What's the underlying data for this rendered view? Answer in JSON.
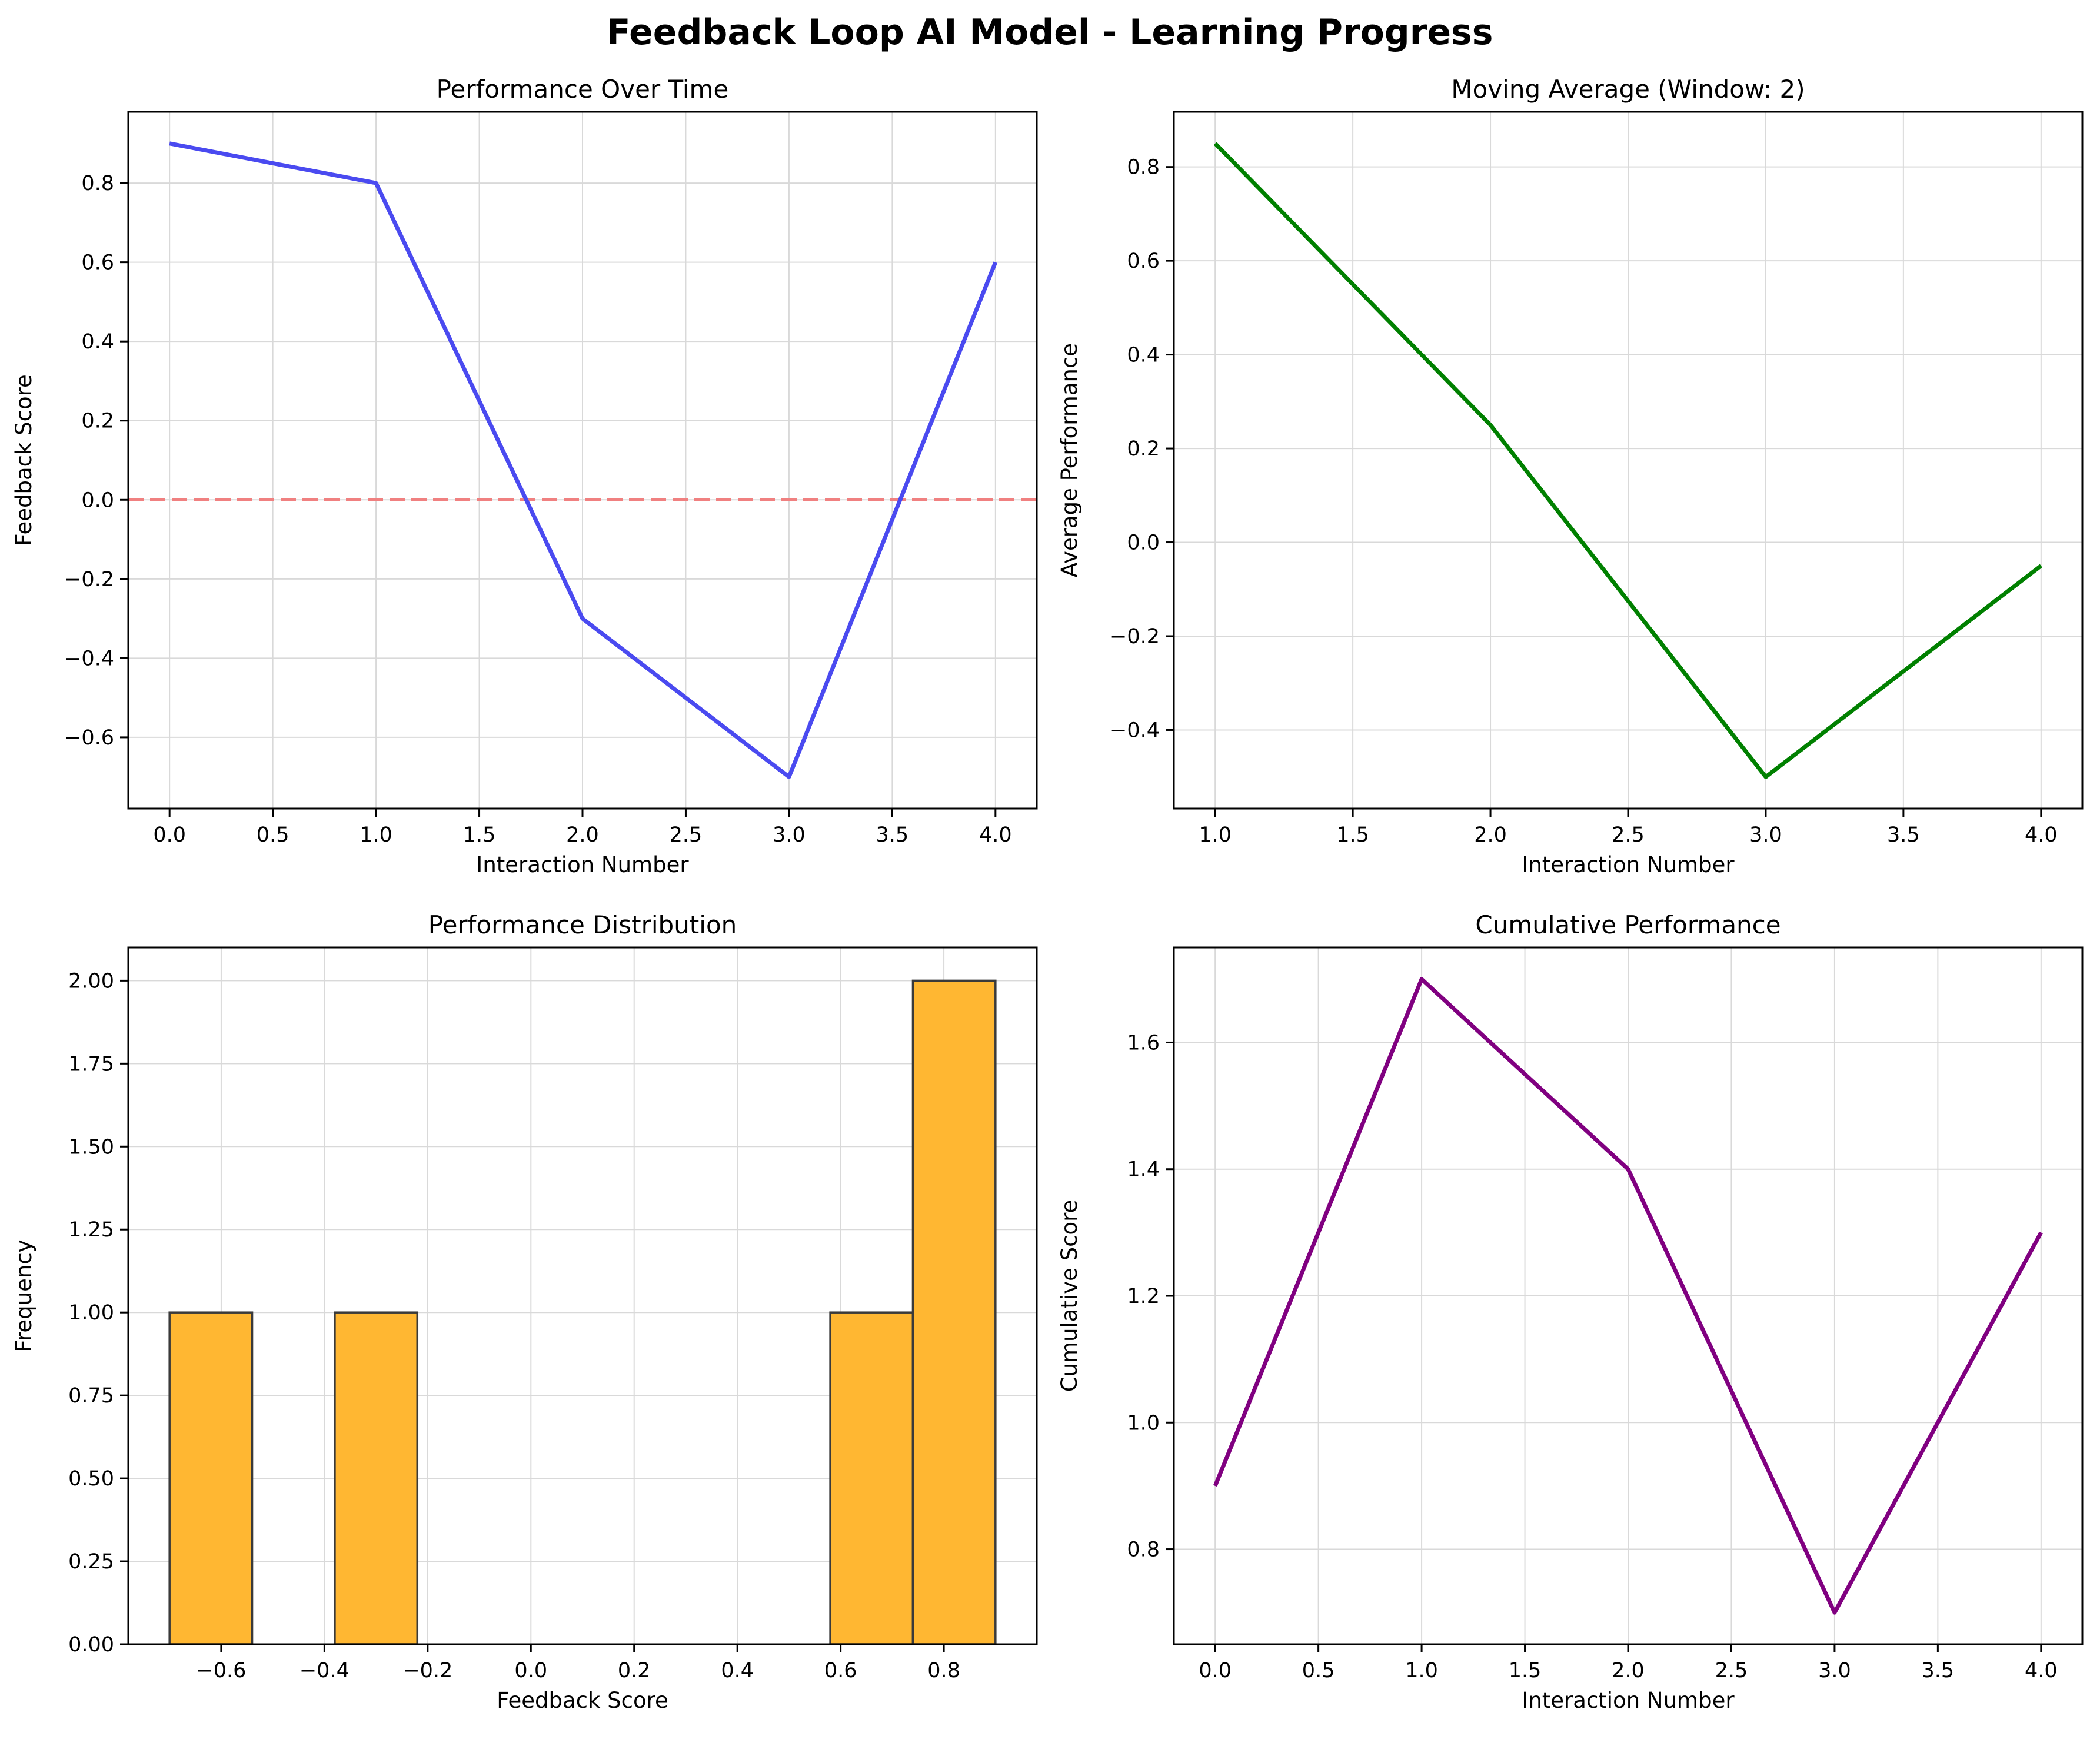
{
  "figure": {
    "title": "Feedback Loop AI Model - Learning Progress"
  },
  "chart_data": [
    {
      "type": "line",
      "title": "Performance Over Time",
      "xlabel": "Interaction Number",
      "ylabel": "Feedback Score",
      "x": [
        0,
        1,
        2,
        3,
        4
      ],
      "series": [
        {
          "values": [
            0.9,
            0.8,
            -0.3,
            -0.7,
            0.6
          ],
          "color": "#4a4af0"
        }
      ],
      "reference_line": {
        "y": 0.0,
        "style": "dashed",
        "color": "#f08080"
      },
      "xlim": [
        -0.2,
        4.2
      ],
      "ylim": [
        -0.78,
        0.98
      ],
      "xticks": [
        0.0,
        0.5,
        1.0,
        1.5,
        2.0,
        2.5,
        3.0,
        3.5,
        4.0
      ],
      "xtick_labels": [
        "0.0",
        "0.5",
        "1.0",
        "1.5",
        "2.0",
        "2.5",
        "3.0",
        "3.5",
        "4.0"
      ],
      "yticks": [
        -0.6,
        -0.4,
        -0.2,
        0.0,
        0.2,
        0.4,
        0.6,
        0.8
      ],
      "ytick_labels": [
        "−0.6",
        "−0.4",
        "−0.2",
        "0.0",
        "0.2",
        "0.4",
        "0.6",
        "0.8"
      ],
      "grid": true
    },
    {
      "type": "line",
      "title": "Moving Average (Window: 2)",
      "xlabel": "Interaction Number",
      "ylabel": "Average Performance",
      "x": [
        1,
        2,
        3,
        4
      ],
      "series": [
        {
          "values": [
            0.85,
            0.25,
            -0.5,
            -0.05
          ],
          "color": "#008000"
        }
      ],
      "xlim": [
        0.85,
        4.15
      ],
      "ylim": [
        -0.5675,
        0.9175
      ],
      "xticks": [
        1.0,
        1.5,
        2.0,
        2.5,
        3.0,
        3.5,
        4.0
      ],
      "xtick_labels": [
        "1.0",
        "1.5",
        "2.0",
        "2.5",
        "3.0",
        "3.5",
        "4.0"
      ],
      "yticks": [
        -0.4,
        -0.2,
        0.0,
        0.2,
        0.4,
        0.6,
        0.8
      ],
      "ytick_labels": [
        "−0.4",
        "−0.2",
        "0.0",
        "0.2",
        "0.4",
        "0.6",
        "0.8"
      ],
      "grid": true
    },
    {
      "type": "bar",
      "title": "Performance Distribution",
      "xlabel": "Feedback Score",
      "ylabel": "Frequency",
      "bins": [
        {
          "x0": -0.7,
          "x1": -0.54,
          "count": 1
        },
        {
          "x0": -0.38,
          "x1": -0.22,
          "count": 1
        },
        {
          "x0": 0.58,
          "x1": 0.74,
          "count": 1
        },
        {
          "x0": 0.74,
          "x1": 0.9,
          "count": 2
        }
      ],
      "bar_color": "#ffb732",
      "edge_color": "#3a3a3a",
      "xlim": [
        -0.78,
        0.98
      ],
      "ylim": [
        0,
        2.1
      ],
      "xticks": [
        -0.6,
        -0.4,
        -0.2,
        0.0,
        0.2,
        0.4,
        0.6,
        0.8
      ],
      "xtick_labels": [
        "−0.6",
        "−0.4",
        "−0.2",
        "0.0",
        "0.2",
        "0.4",
        "0.6",
        "0.8"
      ],
      "yticks": [
        0.0,
        0.25,
        0.5,
        0.75,
        1.0,
        1.25,
        1.5,
        1.75,
        2.0
      ],
      "ytick_labels": [
        "0.00",
        "0.25",
        "0.50",
        "0.75",
        "1.00",
        "1.25",
        "1.50",
        "1.75",
        "2.00"
      ],
      "grid": true
    },
    {
      "type": "line",
      "title": "Cumulative Performance",
      "xlabel": "Interaction Number",
      "ylabel": "Cumulative Score",
      "x": [
        0,
        1,
        2,
        3,
        4
      ],
      "series": [
        {
          "values": [
            0.9,
            1.7,
            1.4,
            0.7,
            1.3
          ],
          "color": "#800080"
        }
      ],
      "xlim": [
        -0.2,
        4.2
      ],
      "ylim": [
        0.65,
        1.75
      ],
      "xticks": [
        0.0,
        0.5,
        1.0,
        1.5,
        2.0,
        2.5,
        3.0,
        3.5,
        4.0
      ],
      "xtick_labels": [
        "0.0",
        "0.5",
        "1.0",
        "1.5",
        "2.0",
        "2.5",
        "3.0",
        "3.5",
        "4.0"
      ],
      "yticks": [
        0.8,
        1.0,
        1.2,
        1.4,
        1.6
      ],
      "ytick_labels": [
        "0.8",
        "1.0",
        "1.2",
        "1.4",
        "1.6"
      ],
      "grid": true
    }
  ]
}
